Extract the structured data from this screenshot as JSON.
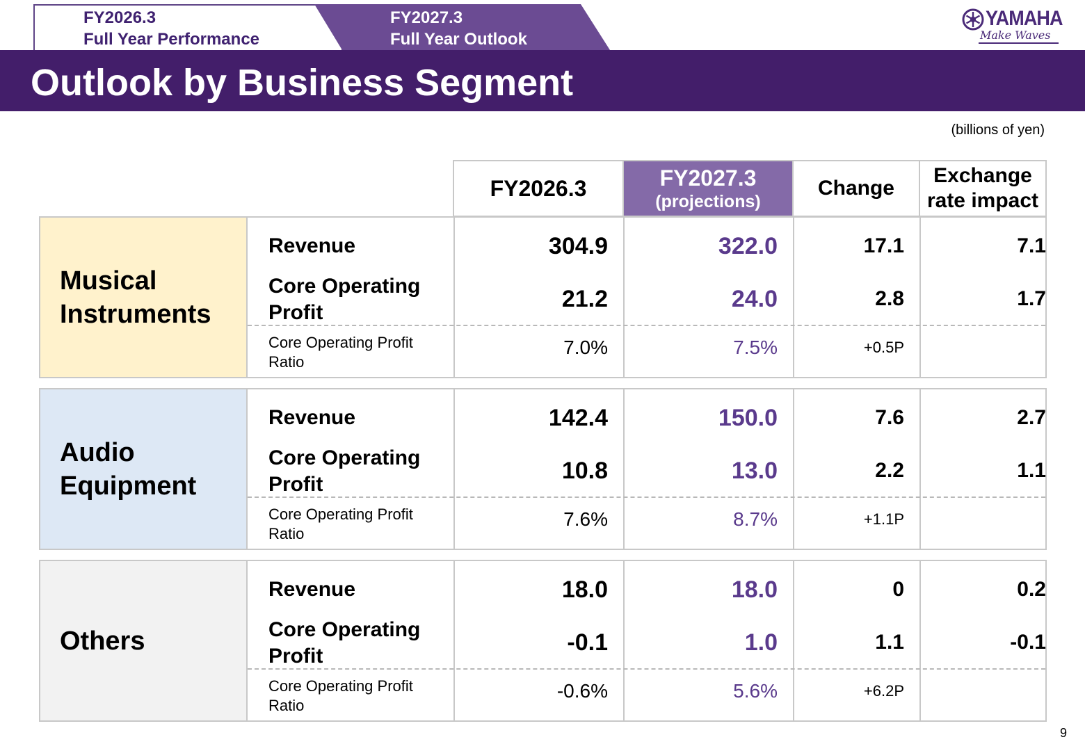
{
  "tabs": [
    {
      "line1": "FY2026.3",
      "line2": "Full Year Performance"
    },
    {
      "line1": "FY2027.3",
      "line2": "Full Year Outlook"
    }
  ],
  "logo": {
    "word": "YAMAHA",
    "tagline": "Make Waves"
  },
  "title": "Outlook by Business Segment",
  "unit_note": "(billions of yen)",
  "page_number": "9",
  "columns": {
    "fy26": "FY2026.3",
    "fy27_line1": "FY2027.3",
    "fy27_line2": "(projections)",
    "change": "Change",
    "fx_line1": "Exchange",
    "fx_line2": "rate impact"
  },
  "row_labels": {
    "revenue": "Revenue",
    "cop_line1": "Core Operating",
    "cop_line2": "Profit",
    "ratio_line1": "Core Operating Profit",
    "ratio_line2": "Ratio"
  },
  "segments": [
    {
      "name_line1": "Musical",
      "name_line2": "Instruments",
      "color": "#fff2cc",
      "revenue": {
        "fy26": "304.9",
        "fy27": "322.0",
        "change": "17.1",
        "fx": "7.1"
      },
      "cop": {
        "fy26": "21.2",
        "fy27": "24.0",
        "change": "2.8",
        "fx": "1.7"
      },
      "ratio": {
        "fy26": "7.0%",
        "fy27": "7.5%",
        "change": "+0.5P",
        "fx": ""
      }
    },
    {
      "name_line1": "Audio",
      "name_line2": "Equipment",
      "color": "#dde8f5",
      "revenue": {
        "fy26": "142.4",
        "fy27": "150.0",
        "change": "7.6",
        "fx": "2.7"
      },
      "cop": {
        "fy26": "10.8",
        "fy27": "13.0",
        "change": "2.2",
        "fx": "1.1"
      },
      "ratio": {
        "fy26": "7.6%",
        "fy27": "8.7%",
        "change": "+1.1P",
        "fx": ""
      }
    },
    {
      "name_line1": "Others",
      "name_line2": "",
      "color": "#f2f2f2",
      "revenue": {
        "fy26": "18.0",
        "fy27": "18.0",
        "change": "0",
        "fx": "0.2"
      },
      "cop": {
        "fy26": "-0.1",
        "fy27": "1.0",
        "change": "1.1",
        "fx": "-0.1"
      },
      "ratio": {
        "fy26": "-0.6%",
        "fy27": "5.6%",
        "change": "+6.2P",
        "fx": ""
      }
    }
  ],
  "colors": {
    "brand_purple": "#431e6a",
    "tab_purple": "#6b4b93",
    "projection_purple": "#846aa8",
    "projection_text": "#5a3a8c"
  }
}
